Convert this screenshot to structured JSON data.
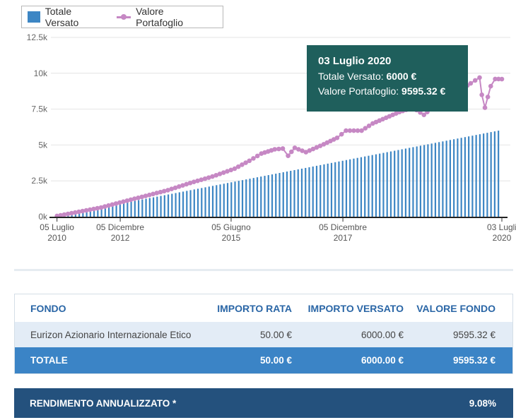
{
  "legend": {
    "bar_label": "Totale Versato",
    "line_label": "Valore Portafoglio"
  },
  "tooltip": {
    "date": "03 Luglio 2020",
    "versato_label": "Totale Versato:",
    "versato_value": "6000 €",
    "valore_label": "Valore Portafoglio:",
    "valore_value": "9595.32 €"
  },
  "chart_data": {
    "type": "bar+line",
    "title": "",
    "xlabel": "",
    "ylabel": "",
    "ylim": [
      0,
      12500
    ],
    "y_ticks": [
      {
        "v": 0,
        "label": "0k"
      },
      {
        "v": 2500,
        "label": "2.5k"
      },
      {
        "v": 5000,
        "label": "5k"
      },
      {
        "v": 7500,
        "label": "7.5k"
      },
      {
        "v": 10000,
        "label": "10k"
      },
      {
        "v": 12500,
        "label": "12.5k"
      }
    ],
    "x_range": [
      2010.5,
      2020.5
    ],
    "x_ticks": [
      {
        "v": 2010.51,
        "line1": "05 Luglio",
        "line2": "2010"
      },
      {
        "v": 2011.93,
        "line1": "05 Dicembre",
        "line2": "2012"
      },
      {
        "v": 2014.42,
        "line1": "05 Giugno",
        "line2": "2015"
      },
      {
        "v": 2016.93,
        "line1": "05 Dicembre",
        "line2": "2017"
      },
      {
        "v": 2020.5,
        "line1": "03 Lugli",
        "line2": "2020"
      }
    ],
    "series": [
      {
        "name": "Totale Versato",
        "type": "bar",
        "color": "#3d86c4",
        "monthly_amount": 50,
        "count": 120,
        "start": 2010.51,
        "step": 0.0833,
        "final_value": 6000
      },
      {
        "name": "Valore Portafoglio",
        "type": "line",
        "color": "#c688c4",
        "points": [
          [
            2010.51,
            50
          ],
          [
            2011.0,
            340
          ],
          [
            2011.5,
            640
          ],
          [
            2012.0,
            1050
          ],
          [
            2012.5,
            1450
          ],
          [
            2013.0,
            1850
          ],
          [
            2013.5,
            2350
          ],
          [
            2014.0,
            2800
          ],
          [
            2014.5,
            3350
          ],
          [
            2014.83,
            3900
          ],
          [
            2015.1,
            4400
          ],
          [
            2015.4,
            4700
          ],
          [
            2015.58,
            4750
          ],
          [
            2015.7,
            4250
          ],
          [
            2015.85,
            4800
          ],
          [
            2016.1,
            4500
          ],
          [
            2016.5,
            5050
          ],
          [
            2016.8,
            5500
          ],
          [
            2017.0,
            6000
          ],
          [
            2017.35,
            6000
          ],
          [
            2017.6,
            6500
          ],
          [
            2017.9,
            6900
          ],
          [
            2018.2,
            7300
          ],
          [
            2018.5,
            7600
          ],
          [
            2018.75,
            7100
          ],
          [
            2018.9,
            7500
          ],
          [
            2019.2,
            8100
          ],
          [
            2019.5,
            8700
          ],
          [
            2019.8,
            9300
          ],
          [
            2020.0,
            9700
          ],
          [
            2020.05,
            8500
          ],
          [
            2020.12,
            7600
          ],
          [
            2020.25,
            9100
          ],
          [
            2020.35,
            9600
          ],
          [
            2020.5,
            9595.32
          ]
        ]
      }
    ]
  },
  "table": {
    "headers": [
      "FONDO",
      "IMPORTO RATA",
      "IMPORTO VERSATO",
      "VALORE FONDO"
    ],
    "rows": [
      [
        "Eurizon Azionario Internazionale Etico",
        "50.00 €",
        "6000.00 €",
        "9595.32 €"
      ]
    ],
    "total": [
      "TOTALE",
      "50.00 €",
      "6000.00 €",
      "9595.32 €"
    ]
  },
  "rendimento": {
    "label": "RENDIMENTO ANNUALIZZATO *",
    "value": "9.08%"
  }
}
